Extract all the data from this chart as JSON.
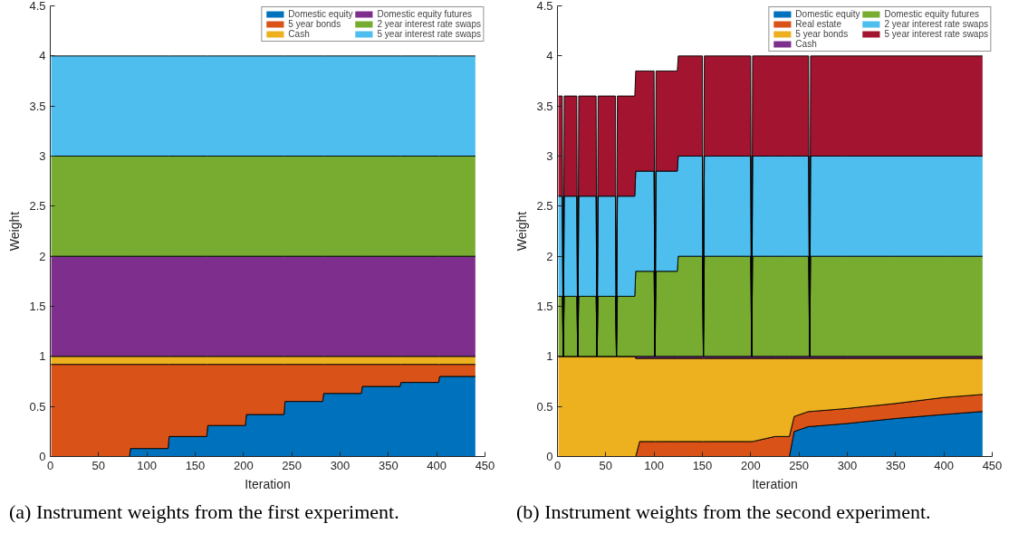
{
  "chart_data": [
    {
      "type": "area",
      "stacked": true,
      "xlabel": "Iteration",
      "ylabel": "Weight",
      "legend": "top right",
      "grid": false,
      "annotations": [
        "(a) Instrument weights from the first experiment."
      ],
      "xlim": [
        0,
        450
      ],
      "ylim": [
        0,
        4.5
      ],
      "xticks": [
        0,
        50,
        100,
        150,
        200,
        250,
        300,
        350,
        400,
        450
      ],
      "yticks": [
        0,
        0.5,
        1,
        1.5,
        2,
        2.5,
        3,
        3.5,
        4,
        4.5
      ],
      "x": [
        1,
        82,
        83,
        122,
        123,
        162,
        163,
        202,
        203,
        242,
        243,
        282,
        283,
        322,
        323,
        362,
        363,
        402,
        403,
        440
      ],
      "series": [
        {
          "name": "Domestic equity",
          "color": "#0072bd",
          "values": [
            0,
            0,
            0.08,
            0.08,
            0.2,
            0.2,
            0.31,
            0.31,
            0.42,
            0.42,
            0.55,
            0.55,
            0.63,
            0.63,
            0.7,
            0.7,
            0.74,
            0.74,
            0.8,
            0.8
          ]
        },
        {
          "name": "5 year bonds",
          "color": "#d95319",
          "values": [
            0.92,
            0.92,
            0.84,
            0.84,
            0.72,
            0.72,
            0.61,
            0.61,
            0.5,
            0.5,
            0.37,
            0.37,
            0.29,
            0.29,
            0.22,
            0.22,
            0.18,
            0.18,
            0.12,
            0.12
          ]
        },
        {
          "name": "Cash",
          "color": "#edb120",
          "values": [
            0.08,
            0.08,
            0.08,
            0.08,
            0.08,
            0.08,
            0.08,
            0.08,
            0.08,
            0.08,
            0.08,
            0.08,
            0.08,
            0.08,
            0.08,
            0.08,
            0.08,
            0.08,
            0.08,
            0.08
          ]
        },
        {
          "name": "Domestic equity futures",
          "color": "#7e2f8e",
          "values": [
            1,
            1,
            1,
            1,
            1,
            1,
            1,
            1,
            1,
            1,
            1,
            1,
            1,
            1,
            1,
            1,
            1,
            1,
            1,
            1
          ]
        },
        {
          "name": "2 year interest rate swaps",
          "color": "#77ac30",
          "values": [
            1,
            1,
            1,
            1,
            1,
            1,
            1,
            1,
            1,
            1,
            1,
            1,
            1,
            1,
            1,
            1,
            1,
            1,
            1,
            1
          ]
        },
        {
          "name": "5 year interest rate swaps",
          "color": "#4dbeee",
          "values": [
            1,
            1,
            1,
            1,
            1,
            1,
            1,
            1,
            1,
            1,
            1,
            1,
            1,
            1,
            1,
            1,
            1,
            1,
            1,
            1
          ]
        }
      ]
    },
    {
      "type": "area",
      "stacked": true,
      "xlabel": "Iteration",
      "ylabel": "Weight",
      "legend": "top right",
      "grid": false,
      "annotations": [
        "(b) Instrument weights from the second experiment."
      ],
      "xlim": [
        0,
        450
      ],
      "ylim": [
        0,
        4.5
      ],
      "xticks": [
        0,
        50,
        100,
        150,
        200,
        250,
        300,
        350,
        400,
        450
      ],
      "yticks": [
        0,
        0.5,
        1,
        1.5,
        2,
        2.5,
        3,
        3.5,
        4,
        4.5
      ],
      "x": [
        1,
        5,
        6,
        7,
        20,
        21,
        22,
        40,
        41,
        42,
        60,
        61,
        62,
        80,
        81,
        85,
        100,
        101,
        102,
        124,
        125,
        150,
        151,
        152,
        200,
        201,
        202,
        225,
        240,
        245,
        260,
        261,
        262,
        300,
        350,
        400,
        440
      ],
      "series": [
        {
          "name": "Domestic equity",
          "color": "#0072bd",
          "values": [
            0,
            0,
            0,
            0,
            0,
            0,
            0,
            0,
            0,
            0,
            0,
            0,
            0,
            0,
            0,
            0,
            0,
            0,
            0,
            0,
            0,
            0,
            0,
            0,
            0,
            0,
            0,
            0,
            0,
            0.25,
            0.3,
            0.3,
            0.3,
            0.33,
            0.38,
            0.42,
            0.45
          ]
        },
        {
          "name": "Real estate",
          "color": "#d95319",
          "values": [
            0,
            0,
            0,
            0,
            0,
            0,
            0,
            0,
            0,
            0,
            0,
            0,
            0,
            0,
            0,
            0.15,
            0.15,
            0.15,
            0.15,
            0.15,
            0.15,
            0.15,
            0.15,
            0.15,
            0.15,
            0.15,
            0.15,
            0.2,
            0.2,
            0.15,
            0.15,
            0.15,
            0.15,
            0.15,
            0.15,
            0.17,
            0.17
          ]
        },
        {
          "name": "5 year bonds",
          "color": "#edb120",
          "values": [
            1,
            1,
            1,
            1,
            1,
            1,
            1,
            1,
            1,
            1,
            1,
            1,
            1,
            1,
            0.98,
            0.83,
            0.83,
            0.83,
            0.83,
            0.83,
            0.83,
            0.83,
            0.83,
            0.83,
            0.83,
            0.83,
            0.83,
            0.78,
            0.78,
            0.58,
            0.53,
            0.53,
            0.53,
            0.5,
            0.45,
            0.39,
            0.36
          ]
        },
        {
          "name": "Cash",
          "color": "#7e2f8e",
          "values": [
            0,
            0,
            0,
            0,
            0,
            0,
            0,
            0,
            0,
            0,
            0,
            0,
            0,
            0,
            0.02,
            0.02,
            0.02,
            0.02,
            0.02,
            0.02,
            0.02,
            0.02,
            0.02,
            0.02,
            0.02,
            0.02,
            0.02,
            0.02,
            0.02,
            0.02,
            0.02,
            0.02,
            0.02,
            0.02,
            0.02,
            0.02,
            0.02
          ]
        },
        {
          "name": "Domestic equity futures",
          "color": "#77ac30",
          "values": [
            0.6,
            0.6,
            0,
            0.6,
            0.6,
            0,
            0.6,
            0.6,
            0,
            0.6,
            0.6,
            0,
            0.6,
            0.6,
            0.85,
            0.85,
            0.85,
            0,
            0.85,
            0.85,
            1,
            1,
            0,
            1,
            1,
            0,
            1,
            1,
            1,
            1,
            1,
            0,
            1,
            1,
            1,
            1,
            1
          ]
        },
        {
          "name": "2 year interest rate swaps",
          "color": "#4dbeee",
          "values": [
            1,
            1,
            0,
            1,
            1,
            0,
            1,
            1,
            0,
            1,
            1,
            0,
            1,
            1,
            1,
            1,
            1,
            0,
            1,
            1,
            1,
            1,
            0,
            1,
            1,
            0,
            1,
            1,
            1,
            1,
            1,
            0,
            1,
            1,
            1,
            1,
            1
          ]
        },
        {
          "name": "5 year interest rate swaps",
          "color": "#a2142f",
          "values": [
            1,
            1,
            0,
            1,
            1,
            0,
            1,
            1,
            0,
            1,
            1,
            0,
            1,
            1,
            1,
            1,
            1,
            0,
            1,
            1,
            1,
            1,
            0,
            1,
            1,
            0,
            1,
            1,
            1,
            1,
            1,
            0,
            1,
            1,
            1,
            1,
            1
          ]
        }
      ]
    }
  ]
}
